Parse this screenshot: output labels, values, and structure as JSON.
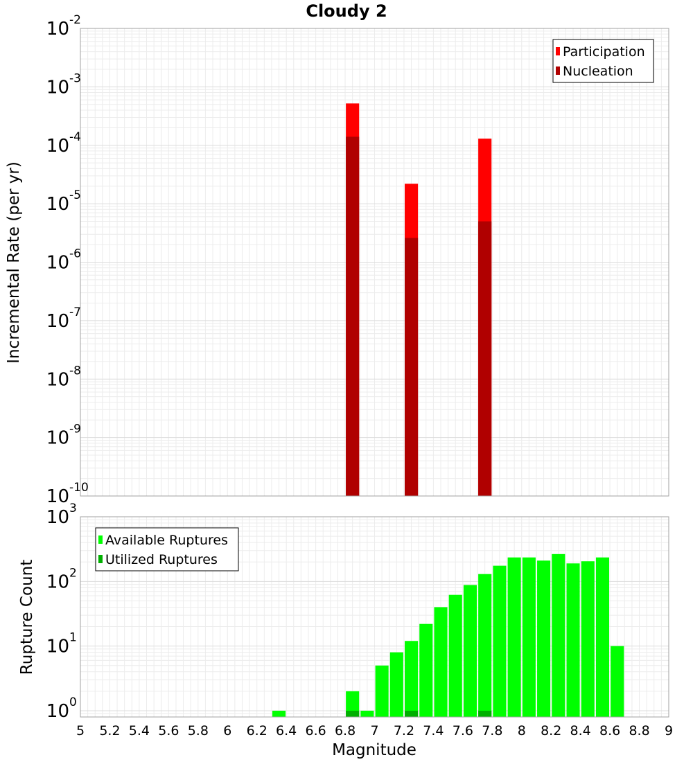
{
  "chart_data": [
    {
      "type": "bar",
      "title": "Cloudy 2",
      "xlabel": "",
      "ylabel": "Incremental Rate (per yr)",
      "yscale": "log",
      "ylim": [
        1e-10,
        0.01
      ],
      "xlim": [
        5,
        9
      ],
      "grid": true,
      "legend_position": "top-right",
      "y_tick_labels": [
        {
          "base": "10",
          "exp": "-10",
          "value": 1e-10
        },
        {
          "base": "10",
          "exp": "-9",
          "value": 1e-09
        },
        {
          "base": "10",
          "exp": "-8",
          "value": 1e-08
        },
        {
          "base": "10",
          "exp": "-7",
          "value": 1e-07
        },
        {
          "base": "10",
          "exp": "-6",
          "value": 1e-06
        },
        {
          "base": "10",
          "exp": "-5",
          "value": 1e-05
        },
        {
          "base": "10",
          "exp": "-4",
          "value": 0.0001
        },
        {
          "base": "10",
          "exp": "-3",
          "value": 0.001
        },
        {
          "base": "10",
          "exp": "-2",
          "value": 0.01
        }
      ],
      "series": [
        {
          "name": "Participation",
          "color": "#ff0000",
          "points": [
            {
              "x": 6.85,
              "y": 0.00052
            },
            {
              "x": 7.25,
              "y": 2.2e-05
            },
            {
              "x": 7.75,
              "y": 0.00013
            }
          ]
        },
        {
          "name": "Nucleation",
          "color": "#b00000",
          "points": [
            {
              "x": 6.85,
              "y": 0.00014
            },
            {
              "x": 7.25,
              "y": 2.6e-06
            },
            {
              "x": 7.75,
              "y": 5e-06
            }
          ]
        }
      ]
    },
    {
      "type": "bar",
      "title": "",
      "xlabel": "Magnitude",
      "ylabel": "Rupture Count",
      "yscale": "log",
      "ylim": [
        0.8,
        1000
      ],
      "xlim": [
        5,
        9
      ],
      "grid": true,
      "legend_position": "top-left",
      "x_tick_labels": [
        "5",
        "5.2",
        "5.4",
        "5.6",
        "5.8",
        "6",
        "6.2",
        "6.4",
        "6.6",
        "6.8",
        "7",
        "7.2",
        "7.4",
        "7.6",
        "7.8",
        "8",
        "8.2",
        "8.4",
        "8.6",
        "8.8",
        "9"
      ],
      "y_tick_labels": [
        {
          "base": "10",
          "exp": "0",
          "value": 1
        },
        {
          "base": "10",
          "exp": "1",
          "value": 10
        },
        {
          "base": "10",
          "exp": "2",
          "value": 100
        },
        {
          "base": "10",
          "exp": "3",
          "value": 1000
        }
      ],
      "series": [
        {
          "name": "Available Ruptures",
          "color": "#00ff00",
          "points": [
            {
              "x": 6.35,
              "y": 1
            },
            {
              "x": 6.85,
              "y": 2
            },
            {
              "x": 6.95,
              "y": 1
            },
            {
              "x": 7.05,
              "y": 5
            },
            {
              "x": 7.15,
              "y": 8
            },
            {
              "x": 7.25,
              "y": 12
            },
            {
              "x": 7.35,
              "y": 22
            },
            {
              "x": 7.45,
              "y": 40
            },
            {
              "x": 7.55,
              "y": 62
            },
            {
              "x": 7.65,
              "y": 88
            },
            {
              "x": 7.75,
              "y": 130
            },
            {
              "x": 7.85,
              "y": 175
            },
            {
              "x": 7.95,
              "y": 235
            },
            {
              "x": 8.05,
              "y": 235
            },
            {
              "x": 8.15,
              "y": 210
            },
            {
              "x": 8.25,
              "y": 265
            },
            {
              "x": 8.35,
              "y": 190
            },
            {
              "x": 8.45,
              "y": 205
            },
            {
              "x": 8.55,
              "y": 235
            },
            {
              "x": 8.65,
              "y": 10
            }
          ]
        },
        {
          "name": "Utilized Ruptures",
          "color": "#00b000",
          "points": [
            {
              "x": 6.85,
              "y": 1
            },
            {
              "x": 7.25,
              "y": 1
            },
            {
              "x": 7.75,
              "y": 1
            }
          ]
        }
      ]
    }
  ]
}
